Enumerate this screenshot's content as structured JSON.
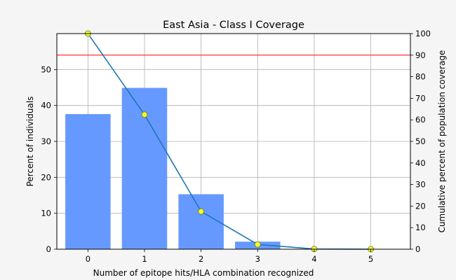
{
  "chart_data": {
    "type": "bar",
    "title": "East Asia - Class I Coverage",
    "xlabel": "Number of epitope hits/HLA combination recognized",
    "ylabel": "Percent of individuals",
    "ylabel_right": "Cumulative percent of population coverage",
    "categories": [
      0,
      1,
      2,
      3,
      4,
      5
    ],
    "xlim": [
      -0.55,
      5.7
    ],
    "ylim": [
      0,
      60
    ],
    "ylim_right": [
      0,
      100
    ],
    "yticks": [
      0,
      10,
      20,
      30,
      40,
      50
    ],
    "yticks_right": [
      0,
      10,
      20,
      30,
      40,
      50,
      60,
      70,
      80,
      90,
      100
    ],
    "grid": true,
    "series": [
      {
        "type": "bar",
        "axis": "left",
        "color": "#6699ff",
        "values": [
          37.6,
          44.9,
          15.3,
          2.1,
          0.1,
          0.0
        ]
      },
      {
        "type": "line",
        "axis": "right",
        "color": "#1f77b4",
        "marker_color": "#ffff33",
        "values": [
          100.0,
          62.4,
          17.5,
          2.2,
          0.1,
          0.0
        ]
      }
    ],
    "reference_line": {
      "axis": "right",
      "value": 90,
      "color": "#ff0000"
    }
  }
}
